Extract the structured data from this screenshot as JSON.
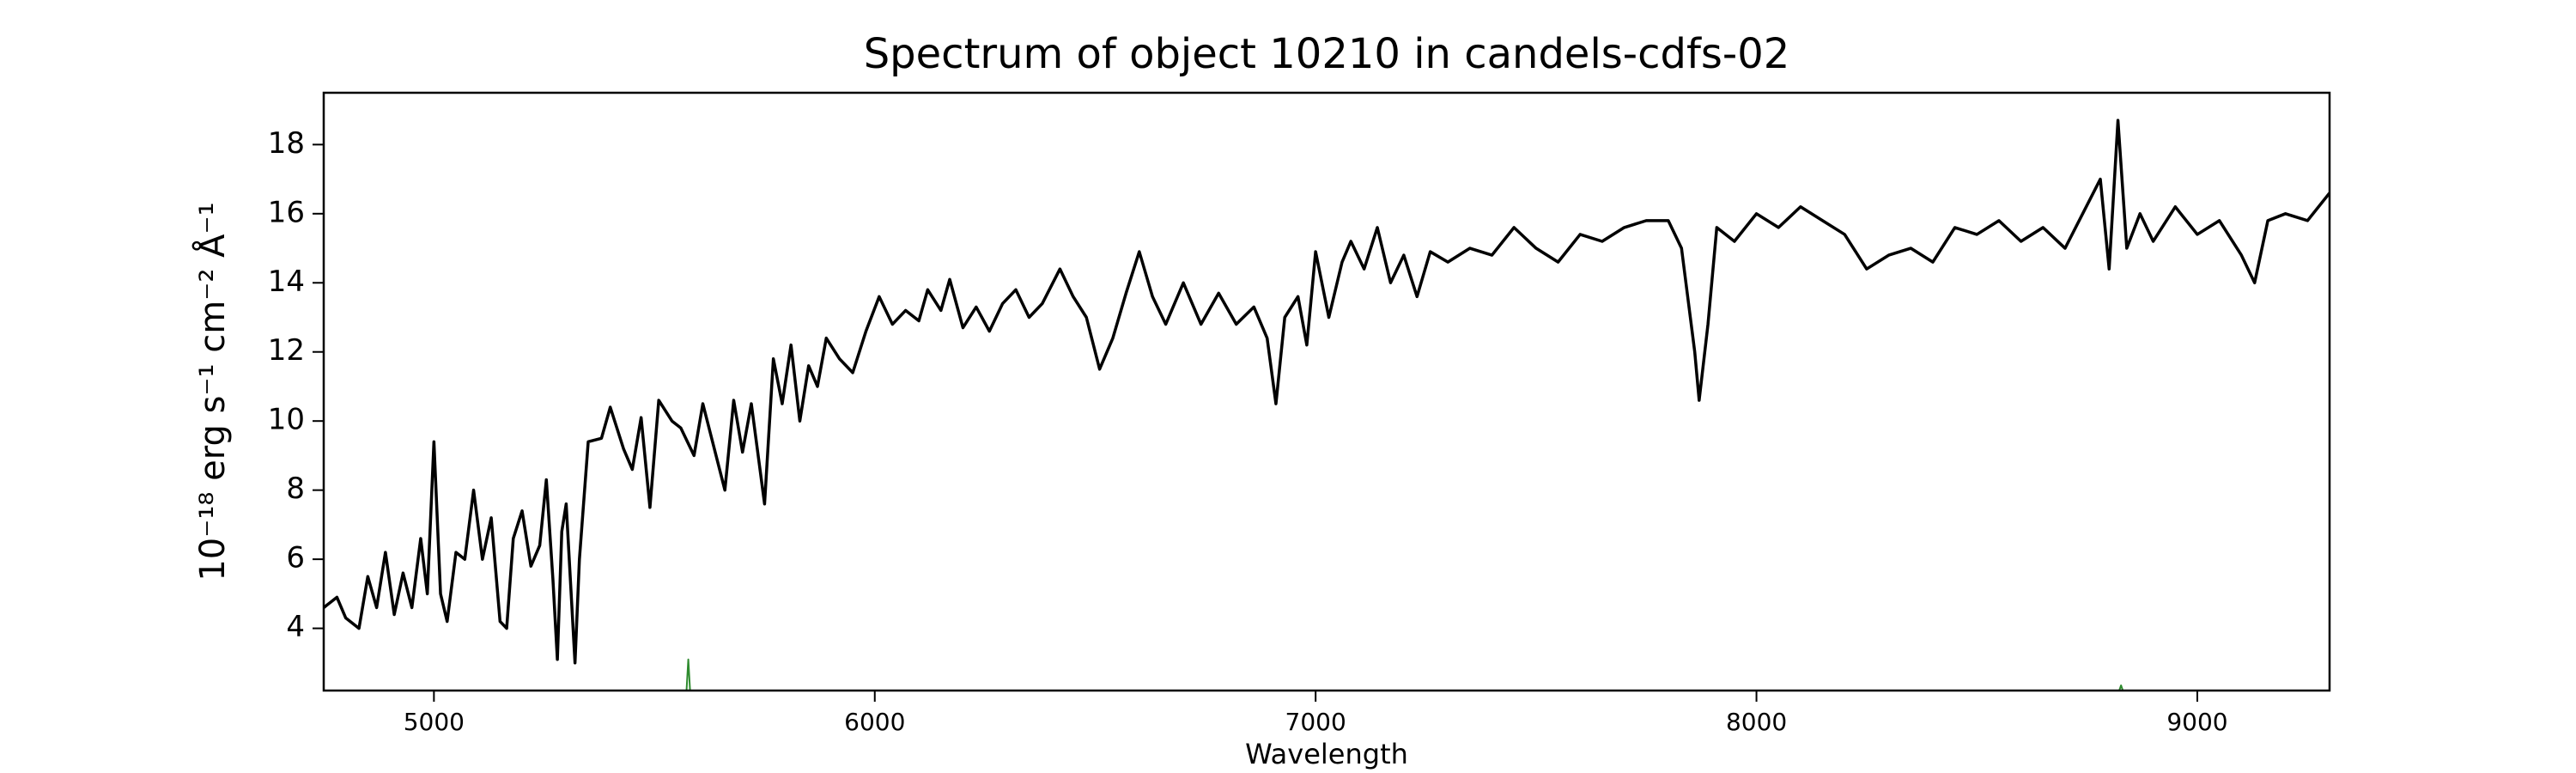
{
  "chart_data": {
    "type": "line",
    "title": "Spectrum of object 10210 in candels-cdfs-02",
    "xlabel": "Wavelength",
    "ylabel": "10⁻¹⁸ erg s⁻¹ cm⁻² Å⁻¹",
    "xlim": [
      4750,
      9300
    ],
    "ylim": [
      2.2,
      19.5
    ],
    "xticks": [
      5000,
      6000,
      7000,
      8000,
      9000
    ],
    "yticks": [
      4,
      6,
      8,
      10,
      12,
      14,
      16,
      18
    ],
    "grid": false,
    "series": [
      {
        "color": "#000000",
        "x": [
          4750,
          4780,
          4800,
          4830,
          4850,
          4870,
          4890,
          4910,
          4930,
          4950,
          4970,
          4985,
          5000,
          5015,
          5030,
          5050,
          5070,
          5090,
          5110,
          5130,
          5150,
          5165,
          5180,
          5200,
          5220,
          5240,
          5255,
          5270,
          5280,
          5290,
          5300,
          5320,
          5330,
          5350,
          5380,
          5400,
          5430,
          5450,
          5470,
          5490,
          5510,
          5540,
          5560,
          5590,
          5610,
          5640,
          5660,
          5680,
          5700,
          5720,
          5750,
          5770,
          5790,
          5810,
          5830,
          5850,
          5870,
          5890,
          5920,
          5950,
          5980,
          6010,
          6040,
          6070,
          6100,
          6120,
          6150,
          6170,
          6200,
          6230,
          6260,
          6290,
          6320,
          6350,
          6380,
          6420,
          6450,
          6480,
          6510,
          6540,
          6570,
          6600,
          6630,
          6660,
          6700,
          6740,
          6780,
          6820,
          6860,
          6890,
          6910,
          6930,
          6960,
          6980,
          7000,
          7030,
          7060,
          7080,
          7110,
          7140,
          7170,
          7200,
          7230,
          7260,
          7300,
          7350,
          7400,
          7450,
          7500,
          7550,
          7600,
          7650,
          7700,
          7750,
          7800,
          7830,
          7860,
          7870,
          7890,
          7910,
          7950,
          8000,
          8050,
          8100,
          8150,
          8200,
          8250,
          8300,
          8350,
          8400,
          8450,
          8500,
          8550,
          8600,
          8650,
          8700,
          8740,
          8780,
          8800,
          8820,
          8840,
          8870,
          8900,
          8950,
          9000,
          9050,
          9100,
          9130,
          9160,
          9200,
          9250,
          9300
        ],
        "values": [
          4.6,
          4.9,
          4.3,
          4.0,
          5.5,
          4.6,
          6.2,
          4.4,
          5.6,
          4.6,
          6.6,
          5.0,
          9.4,
          5.0,
          4.2,
          6.2,
          6.0,
          8.0,
          6.0,
          7.2,
          4.2,
          4.0,
          6.6,
          7.4,
          5.8,
          6.4,
          8.3,
          5.4,
          3.1,
          6.8,
          7.6,
          3.0,
          6.0,
          9.4,
          9.5,
          10.4,
          9.2,
          8.6,
          10.1,
          7.5,
          10.6,
          10.0,
          9.8,
          9.0,
          10.5,
          9.0,
          8.0,
          10.6,
          9.1,
          10.5,
          7.6,
          11.8,
          10.5,
          12.2,
          10.0,
          11.6,
          11.0,
          12.4,
          11.8,
          11.4,
          12.6,
          13.6,
          12.8,
          13.2,
          12.9,
          13.8,
          13.2,
          14.1,
          12.7,
          13.3,
          12.6,
          13.4,
          13.8,
          13.0,
          13.4,
          14.4,
          13.6,
          13.0,
          11.5,
          12.4,
          13.7,
          14.9,
          13.6,
          12.8,
          14.0,
          12.8,
          13.7,
          12.8,
          13.3,
          12.4,
          10.5,
          13.0,
          13.6,
          12.2,
          14.9,
          13.0,
          14.6,
          15.2,
          14.4,
          15.6,
          14.0,
          14.8,
          13.6,
          14.9,
          14.6,
          15.0,
          14.8,
          15.6,
          15.0,
          14.6,
          15.4,
          15.2,
          15.6,
          15.8,
          15.8,
          15.0,
          12.0,
          10.6,
          12.8,
          15.6,
          15.2,
          16.0,
          15.6,
          16.2,
          15.8,
          15.4,
          14.4,
          14.8,
          15.0,
          14.6,
          15.6,
          15.4,
          15.8,
          15.2,
          15.6,
          15.0,
          16.0,
          17.0,
          14.4,
          18.7,
          15.0,
          16.0,
          15.2,
          16.2,
          15.4,
          15.8,
          14.8,
          14.0,
          15.8,
          16.0,
          15.8,
          16.6
        ]
      },
      {
        "color": "#2e8b2e",
        "x": [
          5573,
          5577,
          5581,
          8820,
          8823,
          8827,
          8831
        ],
        "values": [
          2.2,
          3.1,
          2.2,
          null,
          2.2,
          2.35,
          2.2
        ]
      }
    ]
  }
}
